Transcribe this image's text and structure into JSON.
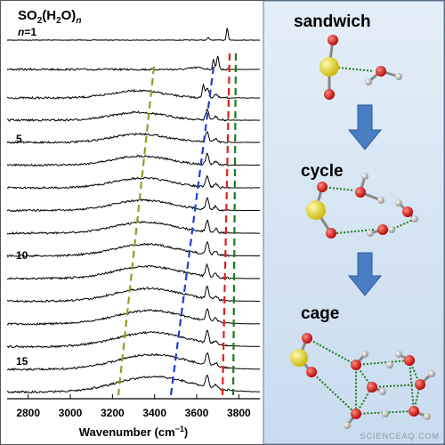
{
  "figure": {
    "title_parts": [
      "SO",
      "2",
      "(H",
      "2",
      "O)",
      "n"
    ],
    "first_label_parts": [
      "n",
      "=1"
    ],
    "row_labels": [
      "5",
      "10",
      "15"
    ],
    "x_axis": {
      "xlim": [
        2700,
        3900
      ],
      "ticks": [
        2800,
        3000,
        3200,
        3400,
        3600,
        3800
      ],
      "label_parts": [
        "Wavenumber (cm",
        "−1",
        ")"
      ]
    },
    "structures": [
      "sandwich",
      "cycle",
      "cage"
    ],
    "watermark": "SCIENCEAQ.COM"
  }
}
